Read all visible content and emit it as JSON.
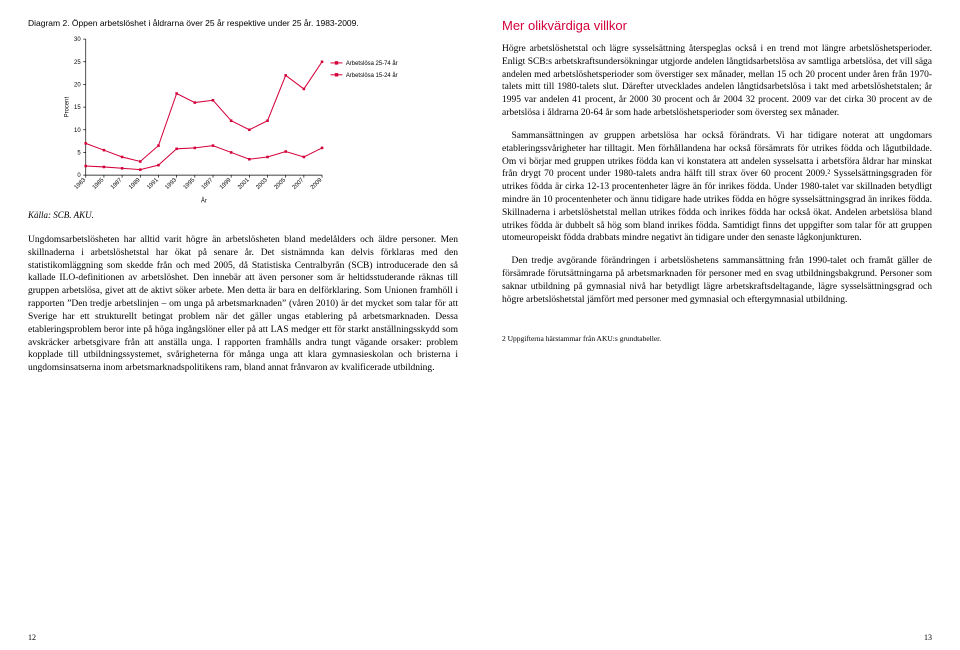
{
  "left": {
    "diagram_title": "Diagram 2. Öppen arbetslöshet i åldrarna över 25 år respektive under 25 år. 1983-2009.",
    "source": "Källa: SCB. AKU.",
    "body_p1": "Ungdomsarbetslösheten har alltid varit högre än arbetslösheten bland medelålders och äldre personer. Men skillnaderna i arbetslöshetstal har ökat på senare år. Det sistnämnda kan delvis förklaras med den statistikomläggning som skedde från och med 2005, då Statistiska Centralbyrån (SCB) introducerade den så kallade ILO-definitionen av arbetslöshet. Den innebär att även personer som är heltidsstuderande räknas till gruppen arbetslösa, givet att de aktivt söker arbete. Men detta är bara en delförklaring. Som Unionen framhöll i rapporten ”Den tredje arbetslinjen – om unga på arbetsmarknaden” (våren 2010) är det mycket som talar för att Sverige har ett strukturellt betingat problem när det gäller ungas etablering på arbetsmarknaden. Dessa etableringsproblem beror inte på höga ingångslöner eller på att LAS medger ett för starkt anställningsskydd som avskräcker arbetsgivare från att anställa unga. I rapporten framhålls andra tungt vägande orsaker: problem kopplade till utbildningssystemet, svårigheterna för många unga att klara gymnasieskolan och bristerna i ungdomsinsatserna inom arbetsmarknadspolitikens ram, bland annat frånvaron av kvalificerade utbildning.",
    "pagenum": "12"
  },
  "right": {
    "heading": "Mer olikvärdiga villkor",
    "body_p1": "Högre arbetslöshetstal och lägre sysselsättning återspeglas också i en trend mot längre arbetslöshetsperioder. Enligt SCB:s arbetskraftsundersökningar utgjorde andelen långtidsarbetslösa av samtliga arbetslösa, det vill säga andelen med arbetslöshetsperioder som överstiger sex månader, mellan 15 och 20 procent under åren från 1970-talets mitt till 1980-talets slut. Därefter utvecklades andelen långtidsarbetslösa i takt med arbetslöshetstalen; år 1995 var andelen 41 procent, år 2000 30 procent och år 2004 32 procent. 2009 var det cirka 30 procent av de arbetslösa i åldrarna 20-64 år som hade arbetslöshetsperioder som översteg sex månader.",
    "body_p2": "Sammansättningen av gruppen arbetslösa har också förändrats. Vi har tidigare noterat att ungdomars etableringssvårigheter har tilltagit. Men förhållandena har också försämrats för utrikes födda och lågutbildade. Om vi börjar med gruppen utrikes födda kan vi konstatera att andelen sysselsatta i arbetsföra åldrar har minskat från drygt 70 procent under 1980-talets andra hälft till strax över 60 procent 2009.² Sysselsättningsgraden för utrikes födda är cirka 12-13 procentenheter lägre än för inrikes födda. Under 1980-talet var skillnaden betydligt mindre än 10 procentenheter och ännu tidigare hade utrikes födda en högre sysselsättningsgrad än inrikes födda. Skillnaderna i arbetslöshetstal mellan utrikes födda och inrikes födda har också ökat. Andelen arbetslösa bland utrikes födda är dubbelt så hög som bland inrikes födda. Samtidigt finns det uppgifter som talar för att gruppen utomeuropeiskt födda drabbats mindre negativt än tidigare under den senaste lågkonjunkturen.",
    "body_p3": "Den tredje avgörande förändringen i arbetslöshetens sammansättning från 1990-talet och framåt gäller de försämrade förutsättningarna på arbetsmarknaden för personer med en svag utbildningsbakgrund. Personer som saknar utbildning på gymnasial nivå har betydligt lägre arbetskraftsdeltagande, lägre sysselsättningsgrad och högre arbetslöshetstal jämfört med personer med gymnasial och eftergymnasial utbildning.",
    "footnote": "2  Uppgifterna härstammar från AKU:s grundtabeller.",
    "pagenum": "13"
  },
  "chart": {
    "type": "line",
    "ylabel": "Procent",
    "xlabel": "År",
    "ylim": [
      0,
      30
    ],
    "ytick_step": 5,
    "x_categories": [
      "1983",
      "1985",
      "1987",
      "1989",
      "1991",
      "1993",
      "1995",
      "1997",
      "1999",
      "2001",
      "2003",
      "2005",
      "2007",
      "2009"
    ],
    "series": [
      {
        "name": "Arbetslösa 25-74 år",
        "color": "#d4003a",
        "values": [
          2.0,
          1.8,
          1.5,
          1.2,
          2.2,
          5.8,
          6.0,
          6.5,
          5.0,
          3.5,
          4.0,
          5.2,
          4.0,
          6.0
        ]
      },
      {
        "name": "Arbetslösa 15-24 år",
        "color": "#d4003a",
        "values": [
          7.0,
          5.5,
          4.0,
          3.0,
          6.5,
          18.0,
          16.0,
          16.5,
          12.0,
          10.0,
          12.0,
          22.0,
          19.0,
          25.0
        ]
      }
    ],
    "label_fontsize": 7,
    "tick_fontsize": 7,
    "line_width": 1.2,
    "marker_size": 3,
    "background_color": "#ffffff"
  }
}
